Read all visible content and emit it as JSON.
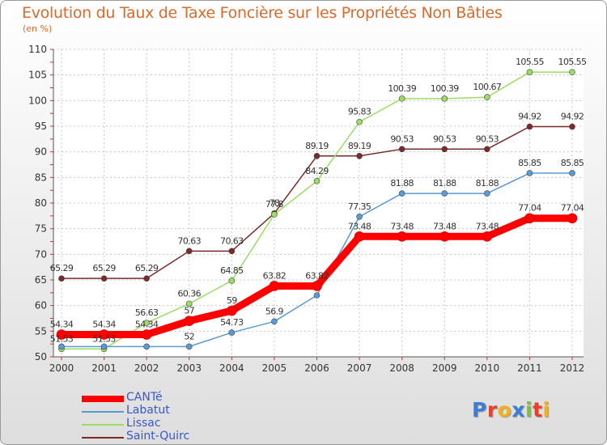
{
  "chart_data": {
    "type": "line",
    "title": "Evolution du Taux de Taxe Foncière sur les Propriétés Non Bâties",
    "ylabel": "(en %)",
    "xlabel": "",
    "categories": [
      "2000",
      "2001",
      "2002",
      "2003",
      "2004",
      "2005",
      "2006",
      "2007",
      "2008",
      "2009",
      "2010",
      "2011",
      "2012"
    ],
    "ylim": [
      50,
      110
    ],
    "yticks": [
      "50",
      "55",
      "60",
      "65",
      "70",
      "75",
      "80",
      "85",
      "90",
      "95",
      "100",
      "105",
      "110"
    ],
    "legend_position": "bottom-left",
    "series": [
      {
        "name": "CANTé",
        "color": "#ff0000",
        "values": [
          54.34,
          54.34,
          54.34,
          57,
          59,
          63.82,
          63.82,
          73.48,
          73.48,
          73.48,
          73.48,
          77.04,
          77.04
        ],
        "labels": [
          "54.34",
          "54.34",
          "54.34",
          "57",
          "59",
          "63.82",
          "63.82",
          "73.48",
          "73.48",
          "73.48",
          "73.48",
          "77.04",
          "77.04"
        ]
      },
      {
        "name": "Labatut",
        "color": "#5b9bd5",
        "values": [
          52,
          52,
          52,
          52,
          54.73,
          56.9,
          62,
          77.35,
          81.88,
          81.88,
          81.88,
          85.85,
          85.85
        ],
        "labels": [
          "",
          "",
          "",
          "52",
          "54.73",
          "56.9",
          "",
          "77.35",
          "81.88",
          "81.88",
          "81.88",
          "85.85",
          "85.85"
        ]
      },
      {
        "name": "Lissac",
        "color": "#99dd66",
        "values": [
          51.53,
          51.53,
          56.63,
          60.36,
          64.85,
          77.8,
          84.29,
          95.83,
          100.39,
          100.39,
          100.67,
          105.55,
          105.55
        ],
        "labels": [
          "51.53",
          "51.53",
          "56.63",
          "60.36",
          "64.85",
          "77.8",
          "84.29",
          "95.83",
          "100.39",
          "100.39",
          "100.67",
          "105.55",
          "105.55"
        ]
      },
      {
        "name": "Saint-Quirc",
        "color": "#7a2a2a",
        "values": [
          65.29,
          65.29,
          65.29,
          70.63,
          70.63,
          78,
          89.19,
          89.19,
          90.53,
          90.53,
          90.53,
          94.92,
          94.92
        ],
        "labels": [
          "65.29",
          "65.29",
          "65.29",
          "70.63",
          "70.63",
          "78",
          "89.19",
          "89.19",
          "90.53",
          "90.53",
          "90.53",
          "94.92",
          "94.92"
        ]
      }
    ]
  },
  "logo": {
    "letters": [
      "P",
      "r",
      "o",
      "x",
      "i",
      "t",
      "i"
    ],
    "colors": [
      "#3a7fd5",
      "#e8402a",
      "#f0b020",
      "#3a7fd5",
      "#7cc142",
      "#e8402a",
      "#f0b020"
    ]
  }
}
